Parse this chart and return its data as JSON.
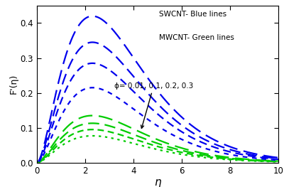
{
  "xlabel": "η",
  "ylabel": "F'(η)",
  "xlim": [
    0,
    10
  ],
  "ylim": [
    0,
    0.45
  ],
  "yticks": [
    0.0,
    0.1,
    0.2,
    0.3,
    0.4
  ],
  "xticks": [
    0,
    2,
    4,
    6,
    8,
    10
  ],
  "swcnt_color": "#0000EE",
  "mwcnt_color": "#00CC00",
  "legend_text_1": "SWCNT- Blue lines",
  "legend_text_2": "MWCNT- Green lines",
  "annotation_text": "ϕ= 0.01, 0.1, 0.2, 0.3",
  "background_color": "#FFFFFF",
  "swcnt_peaks": [
    0.42,
    0.345,
    0.285,
    0.215
  ],
  "mwcnt_peaks": [
    0.135,
    0.113,
    0.095,
    0.077
  ],
  "swcnt_peak_eta": [
    2.3,
    2.3,
    2.3,
    2.3
  ],
  "mwcnt_peak_eta": [
    2.3,
    2.3,
    2.3,
    2.3
  ],
  "decay_swcnt": [
    0.55,
    0.55,
    0.55,
    0.55
  ],
  "decay_mwcnt": [
    0.65,
    0.65,
    0.65,
    0.65
  ]
}
